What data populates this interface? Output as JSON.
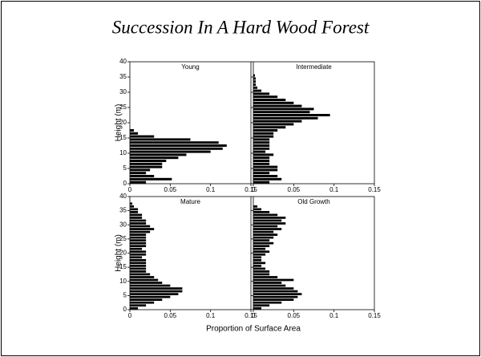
{
  "title": "Succession In A Hard Wood Forest",
  "xlabel": "Proportion of Surface Area",
  "chart_data": [
    {
      "type": "histogram",
      "title": "Young",
      "ylabel": "Height (m)",
      "color": "#000000",
      "bins": [
        0,
        1,
        2,
        3,
        4,
        5,
        6,
        7,
        8,
        9,
        10,
        11,
        12,
        13,
        14,
        15,
        16,
        17,
        18,
        19,
        20,
        21,
        22,
        23,
        24,
        25,
        26,
        27,
        28,
        29,
        30,
        31,
        32,
        33,
        34,
        35,
        36,
        37,
        38,
        39,
        40
      ],
      "values": [
        0.02,
        0.052,
        0.03,
        0.02,
        0.025,
        0.04,
        0.04,
        0.045,
        0.06,
        0.07,
        0.1,
        0.115,
        0.12,
        0.11,
        0.075,
        0.03,
        0.01,
        0.005,
        0,
        0,
        0,
        0,
        0,
        0,
        0,
        0,
        0,
        0,
        0,
        0,
        0,
        0,
        0,
        0,
        0,
        0,
        0,
        0,
        0,
        0
      ],
      "xlim": [
        0,
        0.15
      ],
      "xticks": [
        0,
        0.05,
        0.1,
        0.15
      ],
      "ylim": [
        0,
        40
      ],
      "yticks": [
        0,
        5,
        10,
        15,
        20,
        25,
        30,
        35,
        40
      ]
    },
    {
      "type": "histogram",
      "title": "Intermediate",
      "color": "#000000",
      "bins": [
        0,
        1,
        2,
        3,
        4,
        5,
        6,
        7,
        8,
        9,
        10,
        11,
        12,
        13,
        14,
        15,
        16,
        17,
        18,
        19,
        20,
        21,
        22,
        23,
        24,
        25,
        26,
        27,
        28,
        29,
        30,
        31,
        32,
        33,
        34,
        35,
        36,
        37,
        38,
        39,
        40
      ],
      "values": [
        0.02,
        0.035,
        0.03,
        0.02,
        0.03,
        0.03,
        0.02,
        0.02,
        0.02,
        0.025,
        0.015,
        0.02,
        0.02,
        0.02,
        0.02,
        0.025,
        0.025,
        0.03,
        0.04,
        0.05,
        0.06,
        0.08,
        0.095,
        0.07,
        0.075,
        0.06,
        0.05,
        0.04,
        0.03,
        0.02,
        0.01,
        0.005,
        0.003,
        0.003,
        0.003,
        0.002,
        0,
        0,
        0,
        0
      ],
      "xlim": [
        0,
        0.15
      ],
      "xticks": [
        0,
        0.05,
        0.1,
        0.15
      ],
      "ylim": [
        0,
        40
      ],
      "yticks": [
        0,
        5,
        10,
        15,
        20,
        25,
        30,
        35,
        40
      ]
    },
    {
      "type": "histogram",
      "title": "Mature",
      "ylabel": "Height (m)",
      "color": "#000000",
      "bins": [
        0,
        1,
        2,
        3,
        4,
        5,
        6,
        7,
        8,
        9,
        10,
        11,
        12,
        13,
        14,
        15,
        16,
        17,
        18,
        19,
        20,
        21,
        22,
        23,
        24,
        25,
        26,
        27,
        28,
        29,
        30,
        31,
        32,
        33,
        34,
        35,
        36,
        37,
        38,
        39,
        40
      ],
      "values": [
        0.01,
        0.02,
        0.03,
        0.04,
        0.05,
        0.06,
        0.065,
        0.065,
        0.05,
        0.04,
        0.035,
        0.03,
        0.025,
        0.02,
        0.02,
        0.02,
        0.02,
        0.02,
        0.015,
        0.02,
        0.02,
        0.015,
        0.02,
        0.02,
        0.02,
        0.02,
        0.02,
        0.025,
        0.03,
        0.025,
        0.02,
        0.02,
        0.015,
        0.015,
        0.01,
        0.01,
        0.005,
        0.003,
        0,
        0
      ],
      "xlim": [
        0,
        0.15
      ],
      "xticks": [
        0,
        0.05,
        0.1,
        0.15
      ],
      "ylim": [
        0,
        40
      ],
      "yticks": [
        0,
        5,
        10,
        15,
        20,
        25,
        30,
        35,
        40
      ]
    },
    {
      "type": "histogram",
      "title": "Old Growth",
      "color": "#000000",
      "bins": [
        0,
        1,
        2,
        3,
        4,
        5,
        6,
        7,
        8,
        9,
        10,
        11,
        12,
        13,
        14,
        15,
        16,
        17,
        18,
        19,
        20,
        21,
        22,
        23,
        24,
        25,
        26,
        27,
        28,
        29,
        30,
        31,
        32,
        33,
        34,
        35,
        36,
        37,
        38,
        39,
        40
      ],
      "values": [
        0.01,
        0.02,
        0.035,
        0.05,
        0.055,
        0.06,
        0.055,
        0.05,
        0.04,
        0.035,
        0.05,
        0.03,
        0.02,
        0.02,
        0.015,
        0.01,
        0.015,
        0.01,
        0.01,
        0.015,
        0.02,
        0.015,
        0.02,
        0.025,
        0.02,
        0.025,
        0.03,
        0.025,
        0.035,
        0.03,
        0.04,
        0.035,
        0.04,
        0.03,
        0.02,
        0.01,
        0.005,
        0,
        0,
        0
      ],
      "xlim": [
        0,
        0.15
      ],
      "xticks": [
        0,
        0.05,
        0.1,
        0.15
      ],
      "ylim": [
        0,
        40
      ],
      "yticks": [
        0,
        5,
        10,
        15,
        20,
        25,
        30,
        35,
        40
      ]
    }
  ]
}
